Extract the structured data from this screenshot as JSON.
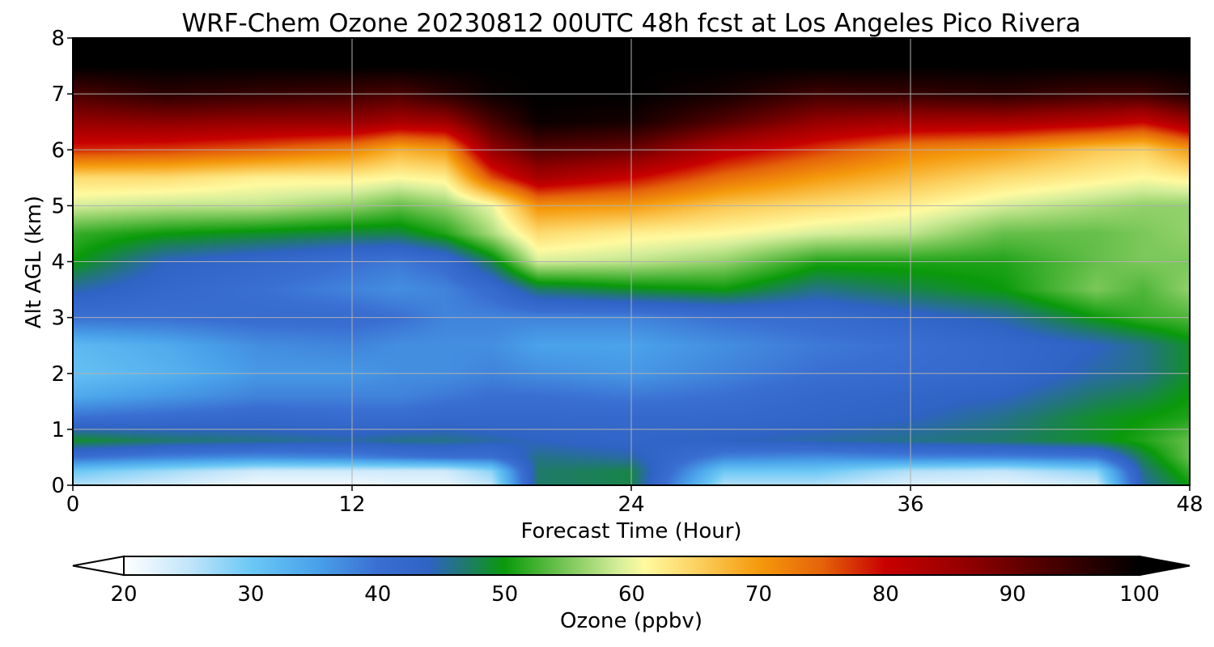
{
  "chart_data": {
    "type": "heatmap",
    "title": "WRF-Chem Ozone  20230812 00UTC 48h fcst at Los Angeles Pico Rivera",
    "xlabel": "Forecast Time (Hour)",
    "ylabel": "Alt AGL (km)",
    "xlim": [
      0,
      48
    ],
    "ylim": [
      0,
      8
    ],
    "xticks": [
      0,
      12,
      24,
      36,
      48
    ],
    "yticks": [
      0,
      1,
      2,
      3,
      4,
      5,
      6,
      7,
      8
    ],
    "grid": true,
    "colorbar": {
      "label": "Ozone  (ppbv)",
      "min": 20,
      "max": 100,
      "ticks": [
        20,
        30,
        40,
        50,
        60,
        70,
        80,
        90,
        100
      ],
      "extend": "both",
      "stops": [
        {
          "v": 20,
          "c": "#ffffff"
        },
        {
          "v": 25,
          "c": "#c4e6fa"
        },
        {
          "v": 30,
          "c": "#6bc8f5"
        },
        {
          "v": 35,
          "c": "#4aa3ea"
        },
        {
          "v": 40,
          "c": "#3a6fd2"
        },
        {
          "v": 44,
          "c": "#2f63c4"
        },
        {
          "v": 47,
          "c": "#1f7a6a"
        },
        {
          "v": 50,
          "c": "#0a9a0a"
        },
        {
          "v": 55,
          "c": "#7cc85a"
        },
        {
          "v": 59,
          "c": "#d6ee9a"
        },
        {
          "v": 61,
          "c": "#fffaa0"
        },
        {
          "v": 65,
          "c": "#fcd262"
        },
        {
          "v": 70,
          "c": "#f59a0c"
        },
        {
          "v": 75,
          "c": "#e5630a"
        },
        {
          "v": 80,
          "c": "#c80000"
        },
        {
          "v": 86,
          "c": "#960000"
        },
        {
          "v": 93,
          "c": "#4a0000"
        },
        {
          "v": 100,
          "c": "#000000"
        }
      ]
    },
    "times": [
      0,
      4,
      8,
      12,
      14,
      16,
      18,
      20,
      24,
      28,
      32,
      36,
      40,
      44,
      46,
      48
    ],
    "altitudes": [
      0,
      0.25,
      0.5,
      0.8,
      1.2,
      1.6,
      2.0,
      2.5,
      3.0,
      3.5,
      4.0,
      4.5,
      5.0,
      5.5,
      6.0,
      6.5,
      7.0,
      7.5,
      8.0
    ],
    "ozone_ppbv": [
      [
        26,
        24,
        21,
        21,
        22,
        22,
        25,
        47,
        48,
        26,
        26,
        23,
        22,
        24,
        45,
        50
      ],
      [
        30,
        27,
        24,
        24,
        24,
        24,
        28,
        47,
        48,
        30,
        30,
        26,
        25,
        28,
        46,
        52
      ],
      [
        40,
        38,
        37,
        38,
        39,
        40,
        40,
        46,
        45,
        38,
        37,
        38,
        38,
        39,
        48,
        54
      ],
      [
        49,
        47,
        46,
        45,
        46,
        46,
        45,
        44,
        43,
        44,
        45,
        46,
        47,
        49,
        51,
        54
      ],
      [
        40,
        41,
        42,
        41,
        41,
        42,
        42,
        42,
        42,
        42,
        43,
        44,
        46,
        49,
        50,
        51
      ],
      [
        34,
        36,
        38,
        38,
        38,
        39,
        40,
        40,
        39,
        40,
        42,
        43,
        44,
        47,
        48,
        50
      ],
      [
        31,
        33,
        36,
        36,
        37,
        37,
        38,
        37,
        36,
        38,
        40,
        41,
        42,
        45,
        46,
        49
      ],
      [
        32,
        34,
        37,
        38,
        37,
        37,
        37,
        35,
        35,
        37,
        39,
        40,
        42,
        44,
        46,
        49
      ],
      [
        40,
        40,
        41,
        41,
        40,
        38,
        38,
        38,
        38,
        40,
        41,
        43,
        45,
        50,
        52,
        53
      ],
      [
        45,
        42,
        40,
        38,
        37,
        38,
        41,
        47,
        49,
        50,
        46,
        48,
        50,
        55,
        53,
        56
      ],
      [
        50,
        44,
        42,
        40,
        39,
        41,
        48,
        59,
        58,
        56,
        51,
        51,
        51,
        54,
        55,
        55
      ],
      [
        52,
        50,
        49,
        48,
        48,
        51,
        57,
        64,
        62,
        61,
        59,
        58,
        54,
        54,
        55,
        56
      ],
      [
        59,
        58,
        58,
        56,
        54,
        56,
        60,
        71,
        70,
        66,
        64,
        62,
        59,
        57,
        56,
        56
      ],
      [
        64,
        64,
        62,
        62,
        61,
        62,
        76,
        84,
        80,
        74,
        70,
        67,
        64,
        62,
        61,
        62
      ],
      [
        78,
        77,
        75,
        72,
        68,
        70,
        86,
        92,
        90,
        82,
        77,
        72,
        70,
        66,
        65,
        70
      ],
      [
        86,
        87,
        86,
        86,
        84,
        85,
        93,
        99,
        98,
        92,
        86,
        84,
        84,
        82,
        80,
        85
      ],
      [
        93,
        96,
        95,
        94,
        93,
        96,
        99,
        100,
        100,
        98,
        94,
        95,
        96,
        94,
        94,
        97
      ],
      [
        100,
        100,
        100,
        100,
        100,
        100,
        100,
        100,
        100,
        100,
        100,
        100,
        100,
        100,
        100,
        100
      ],
      [
        100,
        100,
        100,
        100,
        100,
        100,
        100,
        100,
        100,
        100,
        100,
        100,
        100,
        100,
        100,
        100
      ]
    ]
  }
}
